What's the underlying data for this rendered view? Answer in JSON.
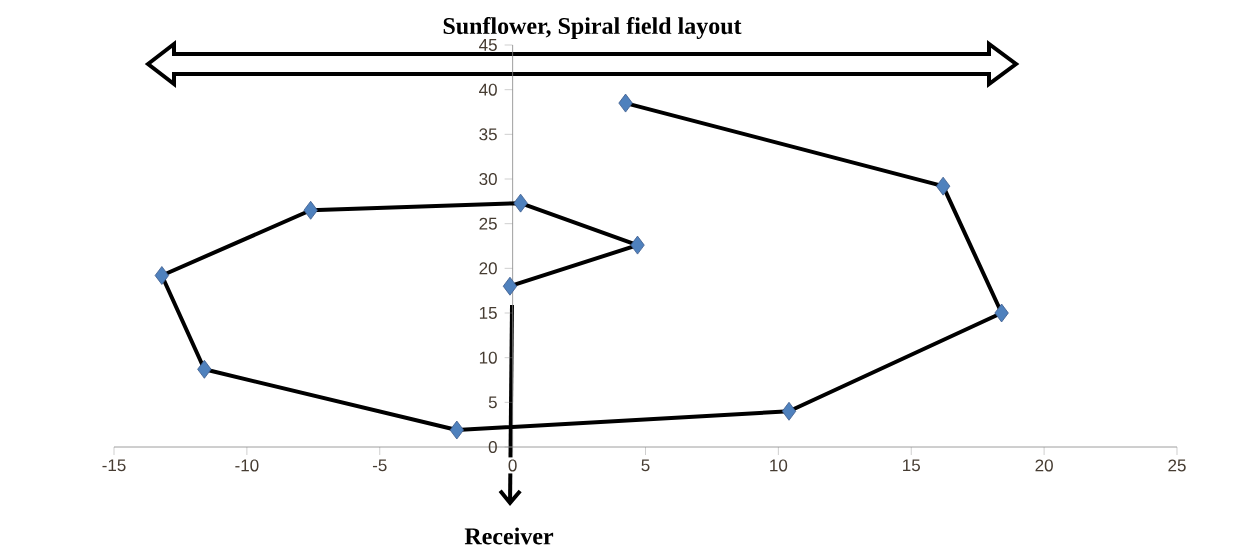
{
  "chart_data": {
    "type": "line",
    "title": "Sunflower, Spiral field layout",
    "annotations": [
      "Receiver"
    ],
    "x": [
      4.25,
      16.2,
      18.4,
      10.4,
      -2.1,
      -11.6,
      -13.2,
      -7.6,
      0.3,
      4.7,
      -0.1
    ],
    "series": [
      {
        "color": "#000000",
        "colors": [
          "#4f81bd",
          "#4f81bd",
          "#4f81bd",
          "#4f81bd",
          "#4f81bd",
          "#4f81bd",
          "#4f81bd",
          "#4f81bd",
          "#4f81bd",
          "#4f81bd",
          "#4f81bd"
        ],
        "values": [
          38.5,
          29.2,
          15.0,
          4.0,
          1.9,
          8.7,
          19.2,
          26.5,
          27.3,
          22.6,
          18.0
        ]
      }
    ],
    "xlim": [
      -15,
      25
    ],
    "xticks": [
      -15,
      -10,
      -5,
      0,
      5,
      10,
      15,
      20,
      25
    ],
    "ylim": [
      0,
      45
    ],
    "yticks": [
      0,
      5,
      10,
      15,
      20,
      25,
      30,
      35,
      40,
      45
    ],
    "marker": "diamond",
    "line_style": "solid"
  }
}
